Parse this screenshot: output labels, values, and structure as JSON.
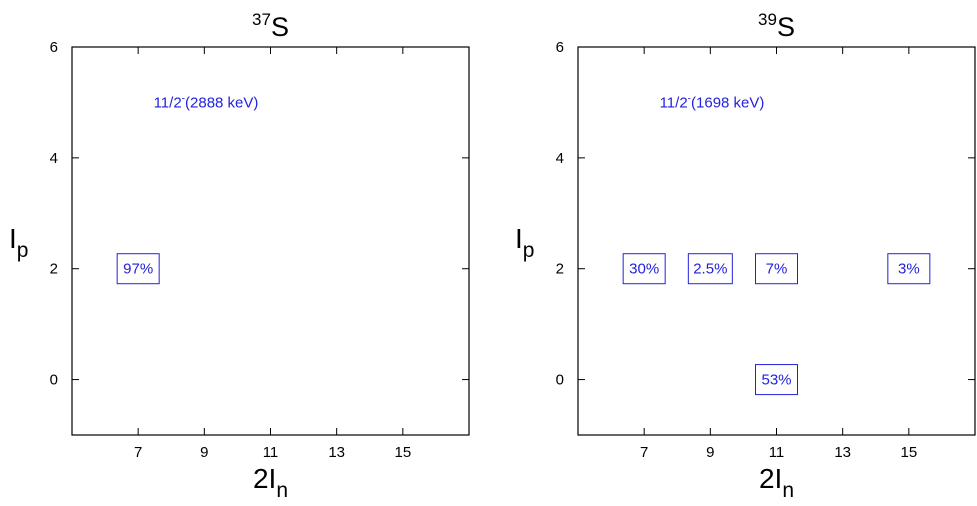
{
  "chart_data": [
    {
      "type": "scatter",
      "title": {
        "sup": "37",
        "main": "S"
      },
      "xlabel": {
        "main": "2I",
        "sub": "n"
      },
      "ylabel": {
        "main": "I",
        "sub": "p"
      },
      "xlim": [
        5,
        17
      ],
      "ylim": [
        -1,
        6
      ],
      "xticks": [
        7,
        9,
        11,
        13,
        15
      ],
      "yticks": [
        0,
        2,
        4,
        6
      ],
      "grid": false,
      "annotation": {
        "before": "11/2",
        "sup": "-",
        "after": "(2888 keV)",
        "color": "#2222dd"
      },
      "series": [
        {
          "points": [
            {
              "x": 7,
              "y": 2,
              "label": "97%"
            }
          ]
        }
      ]
    },
    {
      "type": "scatter",
      "title": {
        "sup": "39",
        "main": "S"
      },
      "xlabel": {
        "main": "2I",
        "sub": "n"
      },
      "ylabel": {
        "main": "I",
        "sub": "p"
      },
      "xlim": [
        5,
        17
      ],
      "ylim": [
        -1,
        6
      ],
      "xticks": [
        7,
        9,
        11,
        13,
        15
      ],
      "yticks": [
        0,
        2,
        4,
        6
      ],
      "grid": false,
      "annotation": {
        "before": "11/2",
        "sup": "-",
        "after": "(1698 keV)",
        "color": "#2222dd"
      },
      "series": [
        {
          "points": [
            {
              "x": 7,
              "y": 2,
              "label": "30%"
            },
            {
              "x": 9,
              "y": 2,
              "label": "2.5%"
            },
            {
              "x": 11,
              "y": 2,
              "label": "7%"
            },
            {
              "x": 15,
              "y": 2,
              "label": "3%"
            },
            {
              "x": 11,
              "y": 0,
              "label": "53%"
            }
          ]
        }
      ]
    }
  ],
  "colors": {
    "axis": "#000000",
    "data": "#2222dd",
    "background": "#ffffff"
  }
}
